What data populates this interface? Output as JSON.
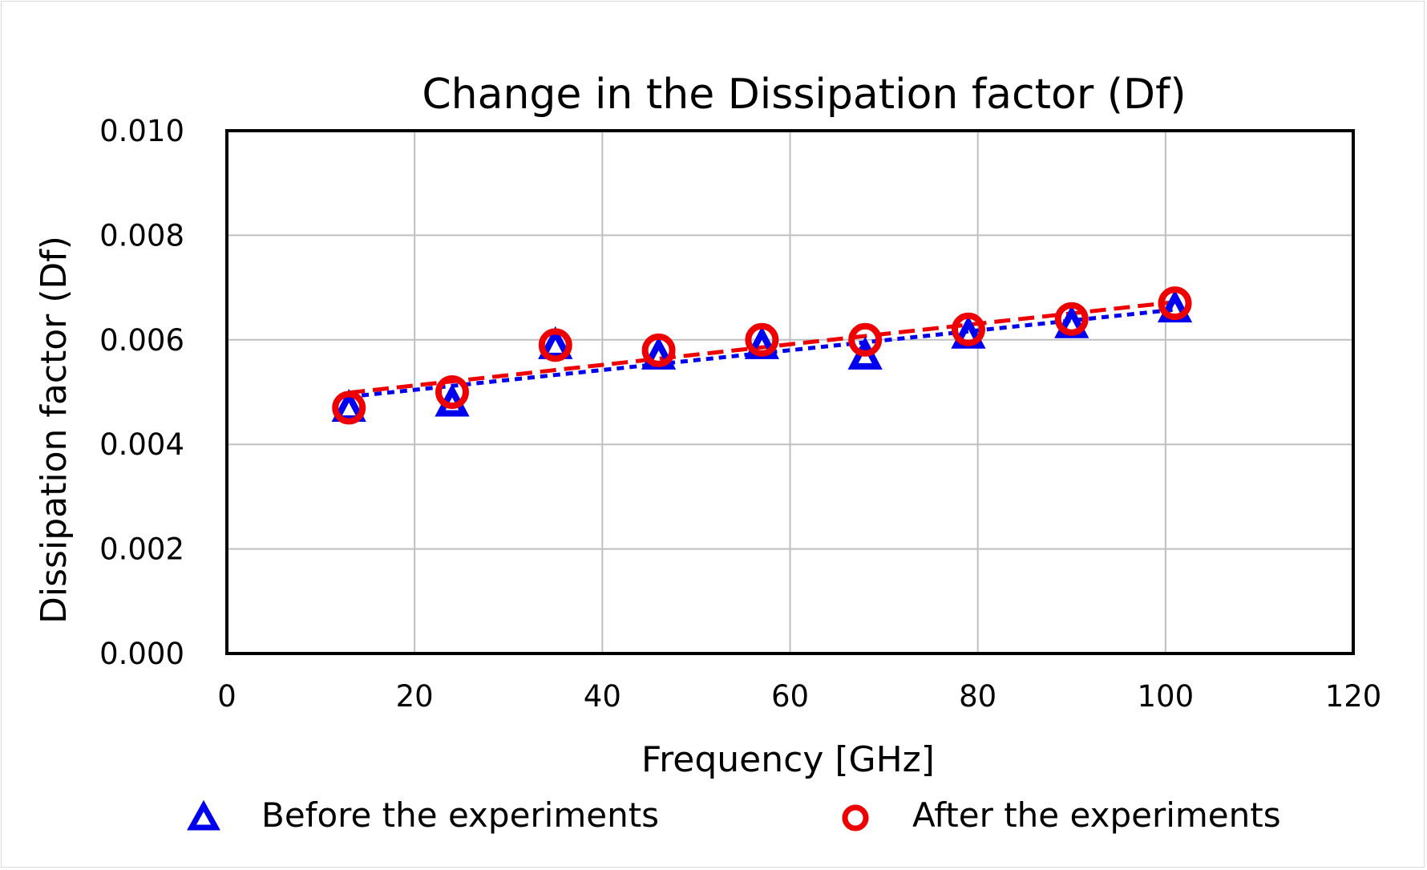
{
  "chart_data": {
    "type": "scatter",
    "title": "Change in the Dissipation factor (Df)",
    "xlabel": "Frequency [GHz]",
    "ylabel": "Dissipation factor (Df)",
    "xlim": [
      0,
      120
    ],
    "ylim": [
      0,
      0.01
    ],
    "xticks": [
      0,
      20,
      40,
      60,
      80,
      100,
      120
    ],
    "yticks": [
      0.0,
      0.002,
      0.004,
      0.006,
      0.008,
      0.01
    ],
    "xtick_labels": [
      "0",
      "20",
      "40",
      "60",
      "80",
      "100",
      "120"
    ],
    "ytick_labels": [
      "0.000",
      "0.002",
      "0.004",
      "0.006",
      "0.008",
      "0.010"
    ],
    "grid": true,
    "legend_position": "bottom",
    "series": [
      {
        "name": "Before the experiments",
        "marker": "triangle",
        "color": "#0000ee",
        "trendline": "linear-dotted",
        "x": [
          13,
          24,
          35,
          46,
          57,
          68,
          79,
          90,
          101
        ],
        "y": [
          0.0047,
          0.0048,
          0.0059,
          0.0057,
          0.0059,
          0.0057,
          0.0061,
          0.0063,
          0.0066
        ]
      },
      {
        "name": "After the experiments",
        "marker": "circle",
        "color": "#ee0000",
        "trendline": "linear-dashed",
        "x": [
          13,
          24,
          35,
          46,
          57,
          68,
          79,
          90,
          101
        ],
        "y": [
          0.0047,
          0.005,
          0.0059,
          0.0058,
          0.006,
          0.006,
          0.0062,
          0.0064,
          0.0067
        ]
      }
    ]
  }
}
